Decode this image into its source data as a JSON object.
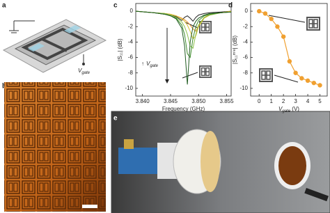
{
  "panels": {
    "a": {
      "label": "a",
      "gate_symbol": "V",
      "gate_subscript": "gate"
    },
    "b": {
      "label": "b"
    },
    "e": {
      "label": "e"
    }
  },
  "chart_data": [
    {
      "type": "line",
      "panel_label": "c",
      "xlabel": "Frequency (GHz)",
      "ylabel": "|S₁₁| (dB)",
      "annotation": {
        "arrow": "↑",
        "symbol": "V",
        "subscript": "gate"
      },
      "x": [
        3.8388,
        3.842,
        3.844,
        3.845,
        3.846,
        3.847,
        3.8475,
        3.848,
        3.8485,
        3.849,
        3.8495,
        3.85,
        3.851,
        3.852,
        3.854,
        3.8558
      ],
      "xlim": [
        3.8388,
        3.8558
      ],
      "xticks": [
        {
          "value": 3.84,
          "label": "3.840"
        },
        {
          "value": 3.845,
          "label": "3.845"
        },
        {
          "value": 3.85,
          "label": "3.850"
        },
        {
          "value": 3.855,
          "label": "3.855"
        }
      ],
      "ylim": [
        -11,
        1
      ],
      "yticks": [
        0,
        -2,
        -4,
        -6,
        -8,
        -10
      ],
      "series": [
        {
          "color": "#222222",
          "values": [
            0,
            -0.2,
            -0.4,
            -0.5,
            -0.7,
            -1.2,
            -0.8,
            -0.6,
            -0.9,
            -1.3,
            -0.8,
            -0.5,
            -0.3,
            -0.2,
            -0.1,
            0
          ]
        },
        {
          "color": "#e8902a",
          "values": [
            0,
            -0.2,
            -0.3,
            -0.4,
            -0.6,
            -0.9,
            -1.1,
            -1.4,
            -1.8,
            -2.3,
            -2.6,
            -1.8,
            -0.8,
            -0.4,
            -0.2,
            0
          ]
        },
        {
          "color": "#d8c030",
          "values": [
            0,
            -0.2,
            -0.3,
            -0.4,
            -0.6,
            -1,
            -1.3,
            -1.8,
            -2.6,
            -3.6,
            -3.2,
            -2,
            -0.9,
            -0.5,
            -0.2,
            0
          ]
        },
        {
          "color": "#8cc04a",
          "values": [
            0,
            -0.2,
            -0.3,
            -0.5,
            -0.8,
            -1.4,
            -2,
            -3,
            -4.5,
            -4.8,
            -3,
            -1.8,
            -0.8,
            -0.5,
            -0.2,
            -0.1
          ]
        },
        {
          "color": "#3c8c2a",
          "values": [
            0,
            -0.2,
            -0.4,
            -0.6,
            -0.9,
            -1.8,
            -3,
            -5.5,
            -6,
            -3.5,
            -2,
            -1.2,
            -0.6,
            -0.4,
            -0.2,
            -0.1
          ]
        },
        {
          "color": "#1f5a1f",
          "values": [
            0,
            -0.2,
            -0.4,
            -0.6,
            -1,
            -2.2,
            -4.5,
            -9.5,
            -4,
            -2,
            -1.3,
            -0.9,
            -0.5,
            -0.3,
            -0.2,
            -0.1
          ]
        }
      ]
    },
    {
      "type": "line",
      "panel_label": "d",
      "markers": true,
      "xlabel": {
        "symbol": "V",
        "subscript": "gate",
        "unit": " (V)"
      },
      "ylabel": "|S₁₁ᵐⁱⁿ| (dB)",
      "x": [
        0,
        0.5,
        1,
        1.5,
        2,
        2.5,
        3,
        3.5,
        4,
        4.5,
        5
      ],
      "xlim": [
        -0.7,
        5.6
      ],
      "xticks": [
        0,
        1,
        2,
        3,
        4,
        5
      ],
      "ylim": [
        -11,
        1
      ],
      "yticks": [
        0,
        -2,
        -4,
        -6,
        -8,
        -10
      ],
      "series": [
        {
          "color": "#f0a030",
          "values": [
            0,
            -0.3,
            -1,
            -2,
            -3.3,
            -6.5,
            -8,
            -8.7,
            -9,
            -9.3,
            -9.6
          ]
        }
      ]
    }
  ]
}
